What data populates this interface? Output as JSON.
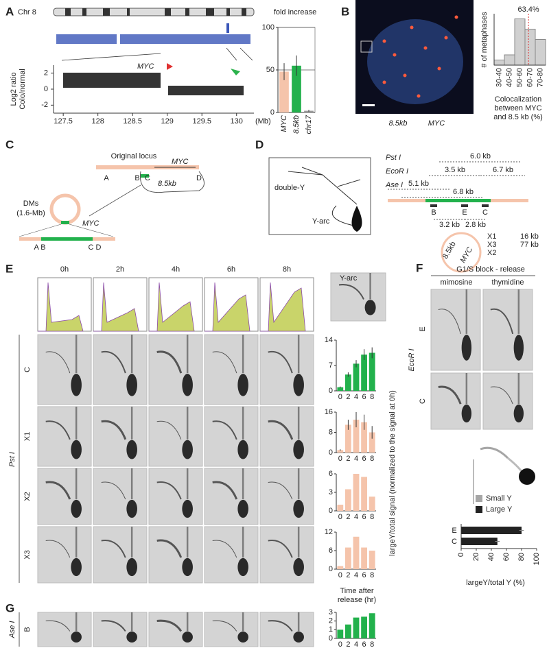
{
  "panel_a": {
    "letter": "A",
    "chromosome": "Chr 8",
    "gene": "MYC",
    "ylabel": [
      "Log2 ratio",
      "Colo/normal"
    ],
    "cnv": {
      "ylim": [
        -3,
        3
      ],
      "yticks": [
        2,
        0,
        -2
      ],
      "xlim": [
        127.36,
        130.25
      ],
      "xticks": [
        127.5,
        128,
        128.5,
        129,
        129.5,
        130
      ],
      "xunit": "(Mb)"
    },
    "fold": {
      "type": "bar",
      "title": "fold increase",
      "categories": [
        "MYC",
        "8.5kb",
        "chr17"
      ],
      "values": [
        48,
        55,
        2
      ],
      "errors": [
        10,
        12,
        1
      ],
      "colors": [
        "#f5c4ab",
        "#22b14c",
        "#999999"
      ],
      "ylim": [
        0,
        100
      ],
      "yticks": [
        0,
        50,
        100
      ],
      "grid": true
    }
  },
  "panel_b": {
    "letter": "B",
    "probes": [
      {
        "name": "8.5kb",
        "color": "#3cb043"
      },
      {
        "name": "MYC",
        "color": "#e8553a"
      }
    ],
    "hist": {
      "type": "histogram",
      "ylabel": "# of metaphases",
      "bins": [
        30,
        40,
        50,
        60,
        70,
        80
      ],
      "categories": [
        "30-40",
        "40-50",
        "50-60",
        "60-70",
        "70-80"
      ],
      "values": [
        1,
        2,
        9,
        7,
        5
      ],
      "ylim": [
        0,
        10
      ],
      "mean": 63.4,
      "mean_label": "63.4%",
      "color": "#d0d0d0",
      "xlabel": [
        "Colocalization",
        "between MYC",
        "and 8.5 kb (%)"
      ]
    }
  },
  "panel_c": {
    "letter": "C",
    "locus": "Original locus",
    "gene": "MYC",
    "sites": [
      "A",
      "B",
      "C",
      "D"
    ],
    "fragment": "8.5kb",
    "dm": [
      "DMs",
      "(1.6-Mb)"
    ],
    "dm_gene": "MYC",
    "dm_sites": [
      "A B",
      "C D"
    ]
  },
  "panel_d": {
    "letter": "D",
    "double_y": "double-Y",
    "y_arc": "Y-arc",
    "enzymes": [
      "Pst I",
      "EcoR I",
      "Ase I"
    ],
    "fragments": [
      "6.0 kb",
      "3.5 kb",
      "6.7 kb",
      "5.1 kb",
      "6.8 kb"
    ],
    "probes": [
      "B",
      "E",
      "C"
    ],
    "spacings": [
      "3.2 kb",
      "2.8 kb"
    ],
    "x_probes": [
      "X1",
      "X3",
      "X2"
    ],
    "x_spacings": [
      "16 kb",
      "77 kb"
    ],
    "circle_labels": [
      "8.5kb",
      "MYC"
    ]
  },
  "panel_e": {
    "letter": "E",
    "times": [
      "0h",
      "2h",
      "4h",
      "6h",
      "8h"
    ],
    "inset": "Y-arc",
    "enzyme": "Pst I",
    "ylabel": "largeY/total signal (normalized to the signal at 0h)",
    "xlabel": [
      "Time after",
      "release (hr)"
    ],
    "rows": [
      {
        "probe": "C",
        "chart": {
          "type": "bar",
          "categories": [
            "0",
            "2",
            "4",
            "6",
            "8"
          ],
          "values": [
            1,
            4.5,
            7.5,
            10,
            10.5
          ],
          "errors": [
            0.2,
            0.6,
            1,
            1.5,
            1.5
          ],
          "color": "#22b14c",
          "ylim": [
            0,
            14
          ],
          "yticks": [
            0,
            7,
            14
          ]
        }
      },
      {
        "probe": "X1",
        "chart": {
          "type": "bar",
          "categories": [
            "0",
            "2",
            "4",
            "6",
            "8"
          ],
          "values": [
            1,
            11,
            13,
            12,
            8
          ],
          "errors": [
            0.3,
            2,
            3,
            3,
            2.5
          ],
          "color": "#f5c4ab",
          "ylim": [
            0,
            16
          ],
          "yticks": [
            0,
            8,
            16
          ]
        }
      },
      {
        "probe": "X2",
        "chart": {
          "type": "bar",
          "categories": [
            "0",
            "2",
            "4",
            "6",
            "8"
          ],
          "values": [
            1,
            3.5,
            6,
            5.5,
            2.3
          ],
          "color": "#f5c4ab",
          "ylim": [
            0,
            6
          ],
          "yticks": [
            0,
            3,
            6
          ]
        }
      },
      {
        "probe": "X3",
        "chart": {
          "type": "bar",
          "categories": [
            "0",
            "2",
            "4",
            "6",
            "8"
          ],
          "values": [
            1,
            7,
            10.5,
            7,
            6
          ],
          "color": "#f5c4ab",
          "ylim": [
            0,
            12
          ],
          "yticks": [
            0,
            6,
            12
          ]
        }
      }
    ]
  },
  "panel_g": {
    "letter": "G",
    "enzyme": "Ase I",
    "probe": "B",
    "chart": {
      "type": "bar",
      "categories": [
        "0",
        "2",
        "4",
        "6",
        "8"
      ],
      "values": [
        1,
        1.6,
        2.4,
        2.5,
        2.9
      ],
      "color": "#22b14c",
      "ylim": [
        0,
        3
      ],
      "yticks": [
        0,
        1,
        2,
        3
      ]
    }
  },
  "panel_f": {
    "letter": "F",
    "title": "G1/S block - release",
    "conditions": [
      "mimosine",
      "thymidine"
    ],
    "enzyme": "EcoR I",
    "probes": [
      "E",
      "C"
    ],
    "legend": [
      {
        "name": "Small Y",
        "color": "#a6a6a6"
      },
      {
        "name": "Large Y",
        "color": "#222222"
      }
    ],
    "chart": {
      "type": "hbar",
      "categories": [
        "E",
        "C"
      ],
      "values": [
        80,
        48
      ],
      "errors": [
        3,
        3
      ],
      "color": "#222222",
      "xlim": [
        0,
        100
      ],
      "xticks": [
        0,
        20,
        40,
        60,
        80,
        100
      ],
      "xlabel": "largeY/total Y (%)"
    }
  }
}
